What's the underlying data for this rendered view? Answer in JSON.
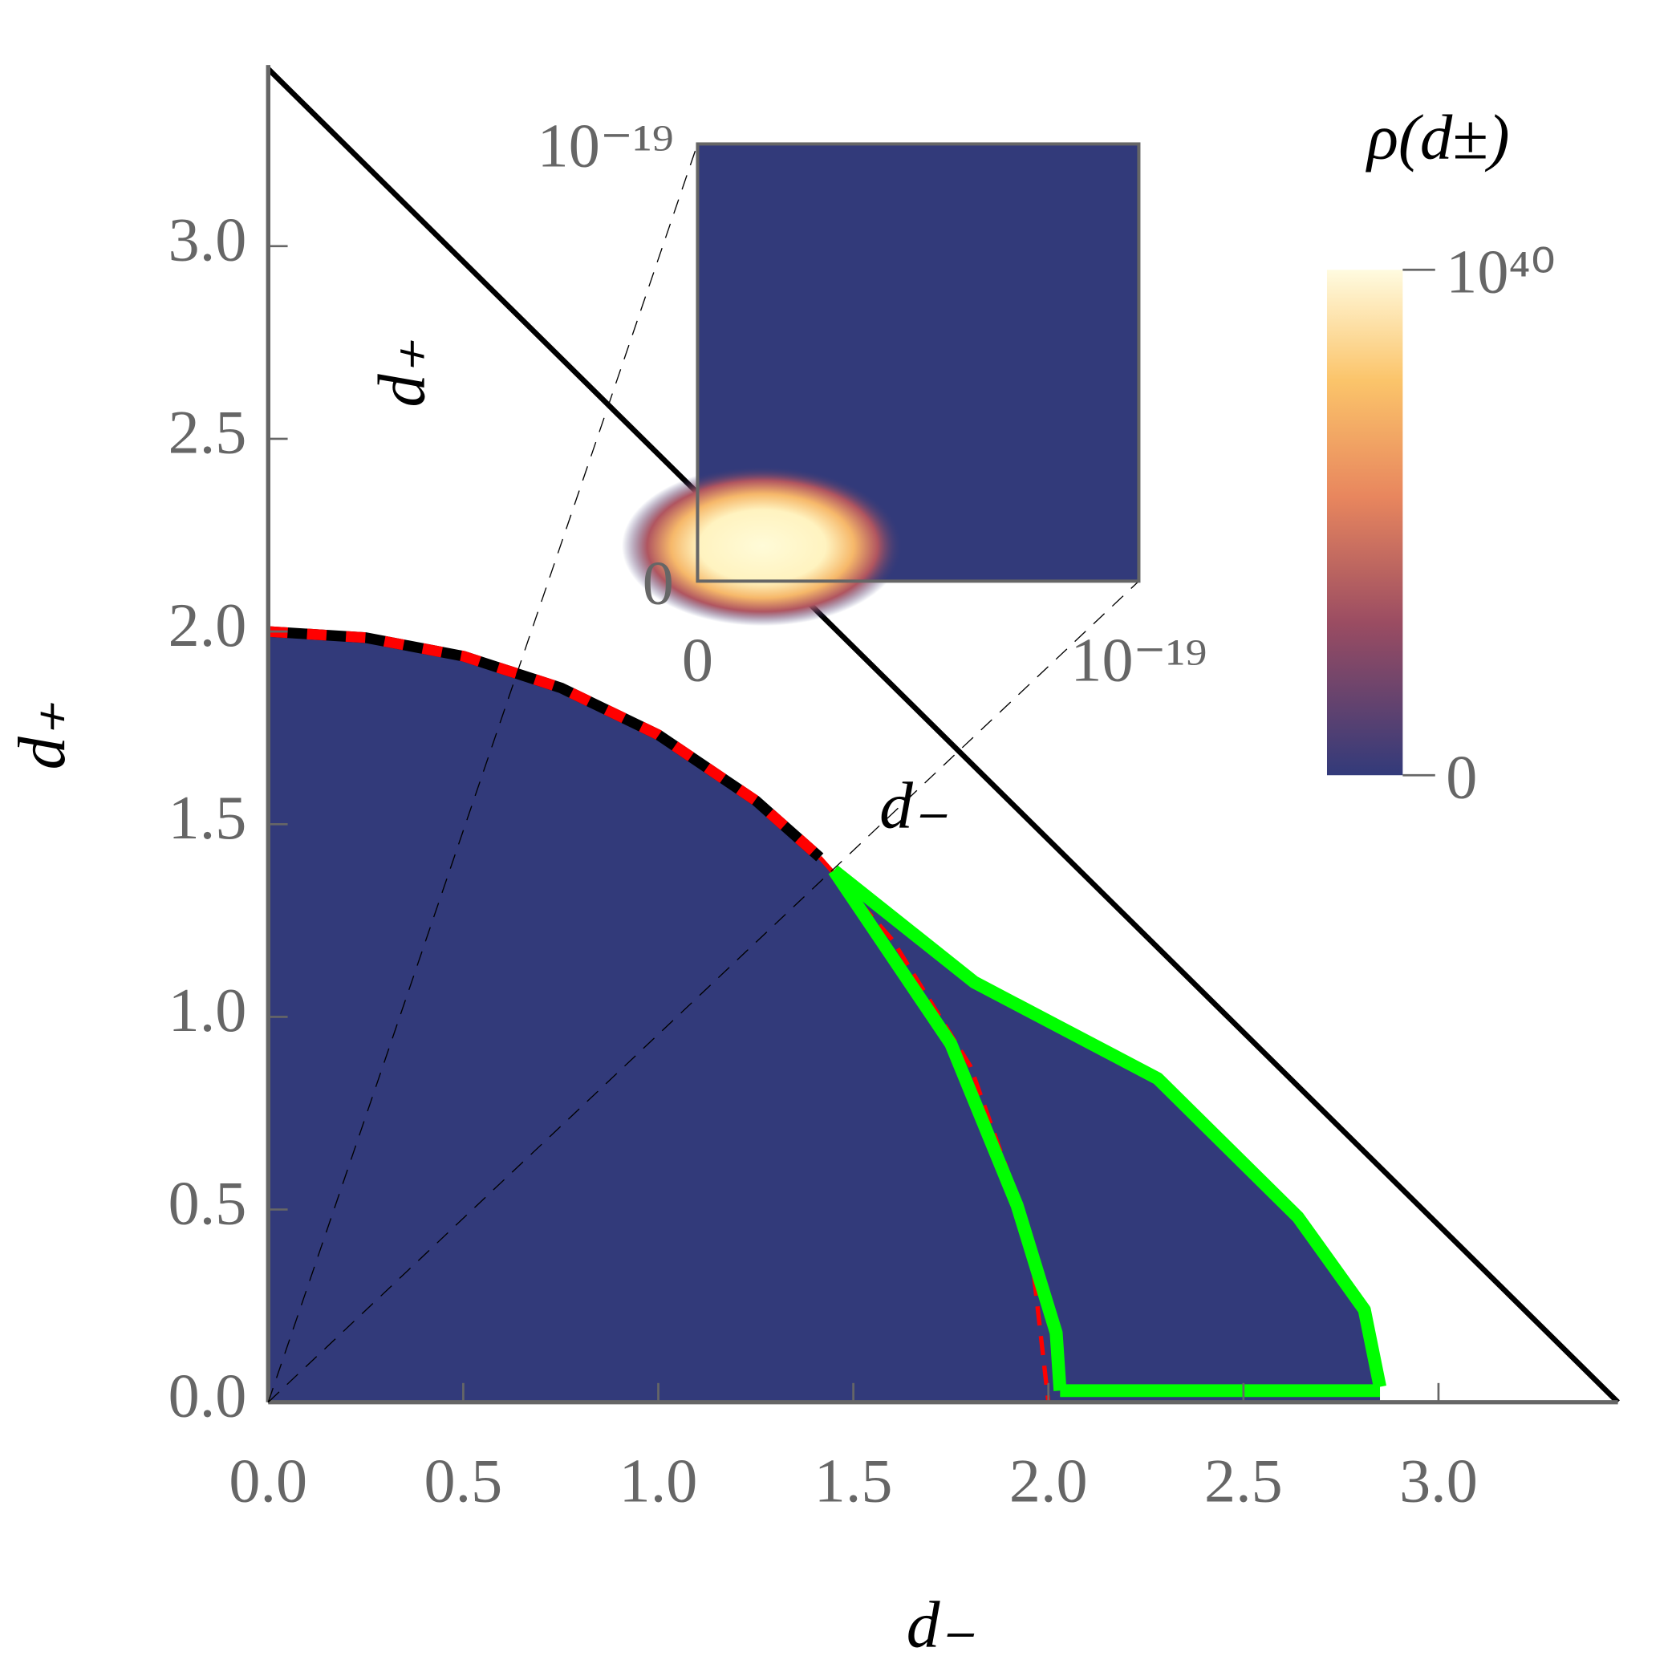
{
  "chart_data": {
    "type": "region",
    "xlabel": "d₋",
    "ylabel": "d₊",
    "xlim": [
      0,
      3.46
    ],
    "ylim": [
      0,
      3.47
    ],
    "xticks": [
      {
        "value": 0,
        "label": "0.0"
      },
      0.5,
      {
        "value": 1,
        "label": "1.0"
      },
      1.5,
      {
        "value": 2,
        "label": "2.0"
      },
      2.5,
      {
        "value": 3,
        "label": "3.0"
      }
    ],
    "yticks": [
      {
        "value": 0,
        "label": "0.0"
      },
      0.5,
      {
        "value": 1,
        "label": "1.0"
      },
      1.5,
      {
        "value": 2,
        "label": "2.0"
      },
      2.5,
      {
        "value": 3,
        "label": "3.0"
      }
    ],
    "fill_color": "#323a7a",
    "series": [
      {
        "color": "#000000",
        "dash_color": "#ff0000",
        "width": 10,
        "x": [
          0,
          0.25,
          0.5,
          0.75,
          1.0,
          1.25,
          1.414
        ],
        "y": [
          2,
          1.984,
          1.936,
          1.854,
          1.732,
          1.561,
          1.414
        ]
      },
      {
        "color": "#ff0000",
        "dashed": true,
        "width": 4,
        "x": [
          1.414,
          1.6,
          1.8,
          1.95,
          2.0
        ],
        "y": [
          1.414,
          1.2,
          0.872,
          0.444,
          0
        ]
      },
      {
        "color": "#00ff00",
        "width": 12,
        "x": [
          1.45,
          1.81,
          2.28,
          2.64,
          2.81,
          2.85
        ],
        "y": [
          1.38,
          1.09,
          0.84,
          0.48,
          0.24,
          0.04
        ]
      },
      {
        "color": "#00ff00",
        "width": 12,
        "x": [
          1.45,
          1.75,
          1.92,
          2.02,
          2.03
        ],
        "y": [
          1.38,
          0.93,
          0.51,
          0.18,
          0.03
        ]
      },
      {
        "color": "#00ff00",
        "width": 12,
        "x": [
          2.03,
          2.85
        ],
        "y": [
          0.03,
          0.03
        ]
      },
      {
        "color": "#000000",
        "width": 5,
        "x": [
          0,
          3.46
        ],
        "y": [
          3.46,
          0
        ]
      }
    ],
    "inset": {
      "xlabel": "d₋",
      "ylabel": "d₊",
      "xlim": [
        0,
        1e-19
      ],
      "ylim": [
        0,
        1e-19
      ],
      "xticks": [
        0,
        {
          "value": 1e-19,
          "label": "10⁻¹⁹"
        }
      ],
      "yticks": [
        0,
        {
          "value": 1e-19,
          "label": "10⁻¹⁹"
        }
      ]
    },
    "colorbar": {
      "title": "ρ(d±)",
      "clim": [
        0,
        1e+40
      ],
      "ticks": [
        0,
        {
          "value": 1e+40,
          "label": "10⁴⁰"
        }
      ]
    }
  }
}
